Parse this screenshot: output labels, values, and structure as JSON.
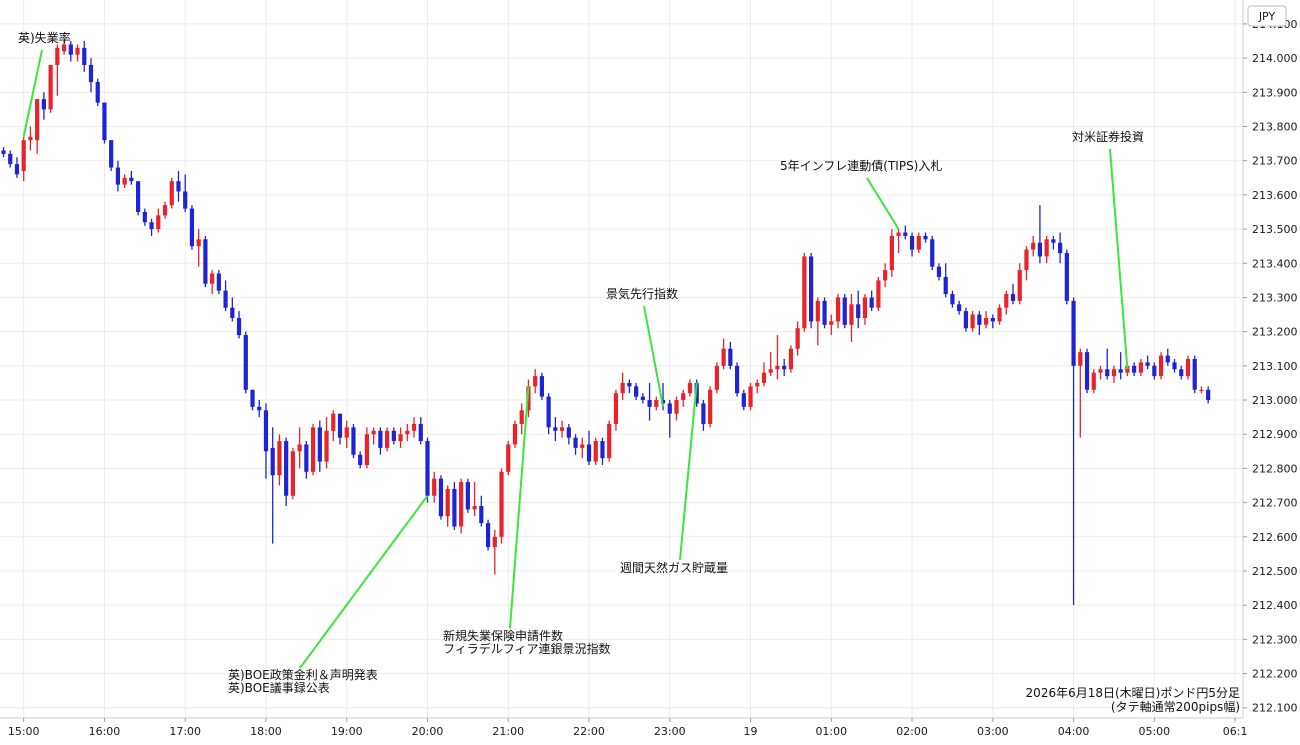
{
  "chart_data": {
    "type": "candlestick",
    "currency_label": "JPY",
    "caption": [
      "2026年6月18日(木曜日)ポンド円5分足",
      "(タテ軸通常200pips幅)"
    ],
    "colors": {
      "up": "#e8232a",
      "down": "#1f23d6",
      "annotation_line": "#3ce63c",
      "grid": "#ececec"
    },
    "grid": true,
    "y_axis": {
      "ylim": [
        212.07,
        214.17
      ],
      "ticks": [
        "214.100",
        "214.000",
        "213.900",
        "213.800",
        "213.700",
        "213.600",
        "213.500",
        "213.400",
        "213.300",
        "213.200",
        "213.100",
        "213.000",
        "212.900",
        "212.800",
        "212.700",
        "212.600",
        "212.500",
        "212.400",
        "212.300",
        "212.200",
        "212.100"
      ]
    },
    "x_axis": {
      "ticks": [
        {
          "label": "15:00",
          "index": 3
        },
        {
          "label": "16:00",
          "index": 15
        },
        {
          "label": "17:00",
          "index": 27
        },
        {
          "label": "18:00",
          "index": 39
        },
        {
          "label": "19:00",
          "index": 51
        },
        {
          "label": "20:00",
          "index": 63
        },
        {
          "label": "21:00",
          "index": 75
        },
        {
          "label": "22:00",
          "index": 87
        },
        {
          "label": "23:00",
          "index": 99
        },
        {
          "label": "19",
          "index": 111
        },
        {
          "label": "01:00",
          "index": 123
        },
        {
          "label": "02:00",
          "index": 135
        },
        {
          "label": "03:00",
          "index": 147
        },
        {
          "label": "04:00",
          "index": 159
        },
        {
          "label": "05:00",
          "index": 171
        },
        {
          "label": "06:1",
          "index": 183
        }
      ]
    },
    "ohlc": [
      [
        213.73,
        213.74,
        213.71,
        213.72
      ],
      [
        213.72,
        213.73,
        213.68,
        213.69
      ],
      [
        213.69,
        213.71,
        213.65,
        213.66
      ],
      [
        213.67,
        213.77,
        213.64,
        213.76
      ],
      [
        213.76,
        213.8,
        213.73,
        213.77
      ],
      [
        213.76,
        213.88,
        213.72,
        213.88
      ],
      [
        213.88,
        213.9,
        213.82,
        213.85
      ],
      [
        213.85,
        213.98,
        213.84,
        213.98
      ],
      [
        213.98,
        214.04,
        213.89,
        214.03
      ],
      [
        214.02,
        214.05,
        214.01,
        214.04
      ],
      [
        214.04,
        214.05,
        213.99,
        214.01
      ],
      [
        214.01,
        214.04,
        213.99,
        214.03
      ],
      [
        214.03,
        214.05,
        213.96,
        213.98
      ],
      [
        213.98,
        214.0,
        213.9,
        213.93
      ],
      [
        213.93,
        213.94,
        213.86,
        213.87
      ],
      [
        213.87,
        213.87,
        213.75,
        213.76
      ],
      [
        213.76,
        213.76,
        213.67,
        213.68
      ],
      [
        213.68,
        213.7,
        213.61,
        213.63
      ],
      [
        213.63,
        213.66,
        213.62,
        213.65
      ],
      [
        213.65,
        213.67,
        213.63,
        213.64
      ],
      [
        213.64,
        213.64,
        213.54,
        213.55
      ],
      [
        213.55,
        213.56,
        213.51,
        213.52
      ],
      [
        213.52,
        213.53,
        213.48,
        213.5
      ],
      [
        213.5,
        213.56,
        213.49,
        213.54
      ],
      [
        213.54,
        213.58,
        213.53,
        213.57
      ],
      [
        213.57,
        213.65,
        213.56,
        213.64
      ],
      [
        213.64,
        213.67,
        213.58,
        213.61
      ],
      [
        213.61,
        213.66,
        213.55,
        213.56
      ],
      [
        213.56,
        213.57,
        213.44,
        213.45
      ],
      [
        213.45,
        213.5,
        213.39,
        213.47
      ],
      [
        213.47,
        213.48,
        213.33,
        213.34
      ],
      [
        213.34,
        213.38,
        213.31,
        213.37
      ],
      [
        213.37,
        213.38,
        213.31,
        213.32
      ],
      [
        213.32,
        213.35,
        213.26,
        213.27
      ],
      [
        213.27,
        213.3,
        213.23,
        213.24
      ],
      [
        213.24,
        213.26,
        213.18,
        213.19
      ],
      [
        213.19,
        213.2,
        213.02,
        213.03
      ],
      [
        213.03,
        213.03,
        212.97,
        212.98
      ],
      [
        212.98,
        213.0,
        212.95,
        212.97
      ],
      [
        212.97,
        212.99,
        212.77,
        212.85
      ],
      [
        212.86,
        212.92,
        212.58,
        212.78
      ],
      [
        212.78,
        212.9,
        212.75,
        212.88
      ],
      [
        212.88,
        212.89,
        212.69,
        212.72
      ],
      [
        212.72,
        212.86,
        212.71,
        212.85
      ],
      [
        212.85,
        212.92,
        212.8,
        212.87
      ],
      [
        212.87,
        212.88,
        212.77,
        212.79
      ],
      [
        212.79,
        212.93,
        212.78,
        212.92
      ],
      [
        212.92,
        212.94,
        212.79,
        212.82
      ],
      [
        212.82,
        212.95,
        212.8,
        212.91
      ],
      [
        212.91,
        212.97,
        212.88,
        212.96
      ],
      [
        212.96,
        212.96,
        212.87,
        212.89
      ],
      [
        212.89,
        212.94,
        212.86,
        212.92
      ],
      [
        212.92,
        212.93,
        212.83,
        212.84
      ],
      [
        212.84,
        212.85,
        212.8,
        212.81
      ],
      [
        212.81,
        212.92,
        212.8,
        212.9
      ],
      [
        212.9,
        212.92,
        212.87,
        212.91
      ],
      [
        212.91,
        212.92,
        212.84,
        212.86
      ],
      [
        212.86,
        212.92,
        212.85,
        212.91
      ],
      [
        212.91,
        212.92,
        212.87,
        212.88
      ],
      [
        212.88,
        212.92,
        212.86,
        212.9
      ],
      [
        212.9,
        212.93,
        212.88,
        212.91
      ],
      [
        212.91,
        212.95,
        212.89,
        212.93
      ],
      [
        212.93,
        212.95,
        212.87,
        212.88
      ],
      [
        212.88,
        212.89,
        212.7,
        212.72
      ],
      [
        212.72,
        212.79,
        212.7,
        212.77
      ],
      [
        212.77,
        212.78,
        212.65,
        212.66
      ],
      [
        212.66,
        212.75,
        212.63,
        212.74
      ],
      [
        212.74,
        212.76,
        212.62,
        212.63
      ],
      [
        212.63,
        212.77,
        212.61,
        212.76
      ],
      [
        212.76,
        212.77,
        212.67,
        212.68
      ],
      [
        212.68,
        212.76,
        212.66,
        212.69
      ],
      [
        212.69,
        212.72,
        212.63,
        212.64
      ],
      [
        212.64,
        212.65,
        212.56,
        212.57
      ],
      [
        212.57,
        212.62,
        212.49,
        212.6
      ],
      [
        212.6,
        212.8,
        212.58,
        212.79
      ],
      [
        212.79,
        212.88,
        212.78,
        212.87
      ],
      [
        212.87,
        212.94,
        212.86,
        212.93
      ],
      [
        212.93,
        212.99,
        212.9,
        212.97
      ],
      [
        212.97,
        213.06,
        212.95,
        213.04
      ],
      [
        213.04,
        213.09,
        213.02,
        213.07
      ],
      [
        213.07,
        213.08,
        213.0,
        213.01
      ],
      [
        213.01,
        213.02,
        212.9,
        212.92
      ],
      [
        212.92,
        212.95,
        212.88,
        212.91
      ],
      [
        212.91,
        212.94,
        212.89,
        212.92
      ],
      [
        212.92,
        212.93,
        212.87,
        212.89
      ],
      [
        212.89,
        212.9,
        212.84,
        212.86
      ],
      [
        212.86,
        212.89,
        212.83,
        212.87
      ],
      [
        212.87,
        212.91,
        212.81,
        212.82
      ],
      [
        212.82,
        212.89,
        212.81,
        212.88
      ],
      [
        212.88,
        212.89,
        212.81,
        212.83
      ],
      [
        212.83,
        212.94,
        212.82,
        212.93
      ],
      [
        212.93,
        213.03,
        212.91,
        213.02
      ],
      [
        213.02,
        213.08,
        213.0,
        213.05
      ],
      [
        213.05,
        213.06,
        213.02,
        213.04
      ],
      [
        213.04,
        213.05,
        213.0,
        213.01
      ],
      [
        213.01,
        213.02,
        212.99,
        213.0
      ],
      [
        213.0,
        213.05,
        212.94,
        212.98
      ],
      [
        212.98,
        213.01,
        212.97,
        213.0
      ],
      [
        213.0,
        213.05,
        212.97,
        212.99
      ],
      [
        212.99,
        213.0,
        212.89,
        212.96
      ],
      [
        212.96,
        213.01,
        212.94,
        213.0
      ],
      [
        213.0,
        213.03,
        212.98,
        213.02
      ],
      [
        213.02,
        213.06,
        213.01,
        213.05
      ],
      [
        213.05,
        213.06,
        212.98,
        212.99
      ],
      [
        212.99,
        213.0,
        212.91,
        212.93
      ],
      [
        212.93,
        213.04,
        212.92,
        213.03
      ],
      [
        213.03,
        213.11,
        213.02,
        213.1
      ],
      [
        213.1,
        213.18,
        213.09,
        213.15
      ],
      [
        213.15,
        213.17,
        213.09,
        213.1
      ],
      [
        213.1,
        213.11,
        213.01,
        213.02
      ],
      [
        213.02,
        213.03,
        212.97,
        212.98
      ],
      [
        212.98,
        213.05,
        212.97,
        213.04
      ],
      [
        213.04,
        213.06,
        213.02,
        213.05
      ],
      [
        213.05,
        213.11,
        213.04,
        213.08
      ],
      [
        213.08,
        213.14,
        213.07,
        213.09
      ],
      [
        213.09,
        213.19,
        213.06,
        213.1
      ],
      [
        213.1,
        213.12,
        213.07,
        213.09
      ],
      [
        213.09,
        213.16,
        213.08,
        213.15
      ],
      [
        213.15,
        213.23,
        213.13,
        213.21
      ],
      [
        213.21,
        213.43,
        213.2,
        213.42
      ],
      [
        213.42,
        213.43,
        213.21,
        213.23
      ],
      [
        213.23,
        213.3,
        213.16,
        213.29
      ],
      [
        213.29,
        213.3,
        213.21,
        213.22
      ],
      [
        213.22,
        213.25,
        213.19,
        213.23
      ],
      [
        213.23,
        213.31,
        213.21,
        213.3
      ],
      [
        213.3,
        213.31,
        213.21,
        213.22
      ],
      [
        213.22,
        213.31,
        213.17,
        213.28
      ],
      [
        213.28,
        213.32,
        213.21,
        213.24
      ],
      [
        213.24,
        213.31,
        213.22,
        213.3
      ],
      [
        213.3,
        213.32,
        213.26,
        213.27
      ],
      [
        213.27,
        213.36,
        213.26,
        213.35
      ],
      [
        213.35,
        213.4,
        213.33,
        213.38
      ],
      [
        213.38,
        213.5,
        213.36,
        213.48
      ],
      [
        213.48,
        213.5,
        213.43,
        213.49
      ],
      [
        213.49,
        213.51,
        213.47,
        213.48
      ],
      [
        213.48,
        213.49,
        213.42,
        213.44
      ],
      [
        213.44,
        213.49,
        213.43,
        213.48
      ],
      [
        213.48,
        213.49,
        213.46,
        213.47
      ],
      [
        213.47,
        213.48,
        213.38,
        213.39
      ],
      [
        213.39,
        213.4,
        213.35,
        213.36
      ],
      [
        213.36,
        213.4,
        213.3,
        213.31
      ],
      [
        213.31,
        213.32,
        213.27,
        213.28
      ],
      [
        213.28,
        213.29,
        213.25,
        213.26
      ],
      [
        213.26,
        213.27,
        213.2,
        213.21
      ],
      [
        213.21,
        213.26,
        213.2,
        213.25
      ],
      [
        213.25,
        213.26,
        213.19,
        213.22
      ],
      [
        213.22,
        213.26,
        213.21,
        213.24
      ],
      [
        213.24,
        213.25,
        213.21,
        213.23
      ],
      [
        213.23,
        213.28,
        213.22,
        213.27
      ],
      [
        213.27,
        213.32,
        213.25,
        213.31
      ],
      [
        213.31,
        213.34,
        213.28,
        213.29
      ],
      [
        213.29,
        213.4,
        213.28,
        213.38
      ],
      [
        213.38,
        213.45,
        213.35,
        213.44
      ],
      [
        213.44,
        213.48,
        213.42,
        213.46
      ],
      [
        213.46,
        213.57,
        213.4,
        213.42
      ],
      [
        213.42,
        213.48,
        213.4,
        213.47
      ],
      [
        213.47,
        213.48,
        213.44,
        213.46
      ],
      [
        213.46,
        213.49,
        213.4,
        213.43
      ],
      [
        213.43,
        213.44,
        213.28,
        213.29
      ],
      [
        213.29,
        213.3,
        212.4,
        213.1
      ],
      [
        213.1,
        213.15,
        212.89,
        213.14
      ],
      [
        213.14,
        213.15,
        213.02,
        213.03
      ],
      [
        213.03,
        213.09,
        213.02,
        213.08
      ],
      [
        213.08,
        213.1,
        213.06,
        213.09
      ],
      [
        213.09,
        213.15,
        213.06,
        213.07
      ],
      [
        213.07,
        213.1,
        213.05,
        213.09
      ],
      [
        213.09,
        213.14,
        213.06,
        213.08
      ],
      [
        213.08,
        213.11,
        213.07,
        213.1
      ],
      [
        213.1,
        213.11,
        213.07,
        213.08
      ],
      [
        213.08,
        213.12,
        213.07,
        213.11
      ],
      [
        213.11,
        213.13,
        213.09,
        213.1
      ],
      [
        213.1,
        213.11,
        213.06,
        213.07
      ],
      [
        213.07,
        213.14,
        213.06,
        213.13
      ],
      [
        213.13,
        213.15,
        213.1,
        213.11
      ],
      [
        213.11,
        213.12,
        213.08,
        213.09
      ],
      [
        213.09,
        213.1,
        213.06,
        213.07
      ],
      [
        213.07,
        213.13,
        213.06,
        213.12
      ],
      [
        213.12,
        213.13,
        213.02,
        213.03
      ],
      [
        213.03,
        213.04,
        213.02,
        213.03
      ],
      [
        213.03,
        213.04,
        212.99,
        213.0
      ]
    ],
    "annotations": [
      {
        "lines": [
          "英)失業率"
        ],
        "index": 3,
        "price": 213.77
      },
      {
        "lines": [
          "英)BOE政策金利＆声明発表",
          "英)BOE議事録公表"
        ],
        "index": 63,
        "price": 212.72
      },
      {
        "lines": [
          "新規失業保険申請件数",
          "フィラデルフィア連銀景況指数"
        ],
        "index": 78,
        "price": 213.04
      },
      {
        "lines": [
          "景気先行指数"
        ],
        "index": 98,
        "price": 212.98
      },
      {
        "lines": [
          "週間天然ガス貯蔵量"
        ],
        "index": 103,
        "price": 213.05
      },
      {
        "lines": [
          "5年インフレ連動債(TIPS)入札"
        ],
        "index": 133,
        "price": 213.5
      },
      {
        "lines": [
          "対米証券投資"
        ],
        "index": 167,
        "price": 213.09
      }
    ]
  }
}
